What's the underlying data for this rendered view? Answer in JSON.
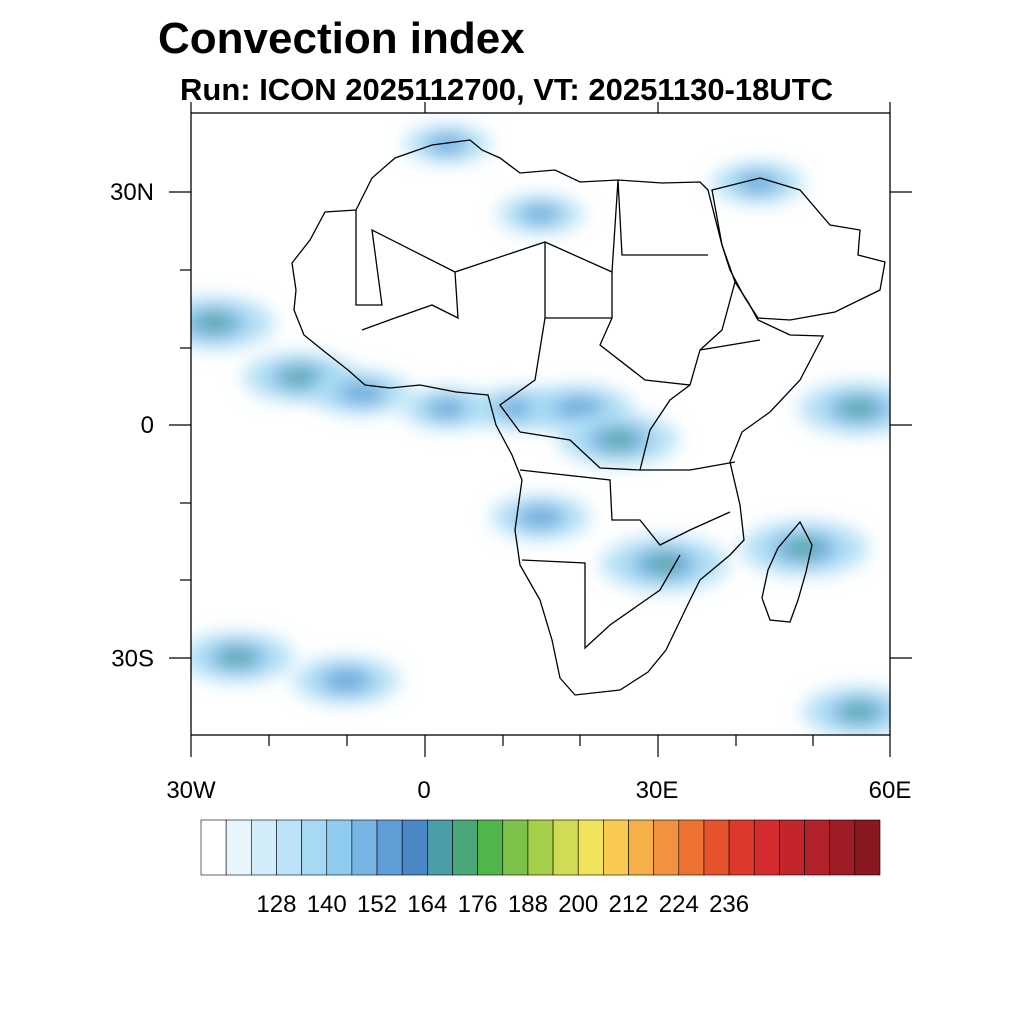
{
  "title": "Convection index",
  "subtitle": "Run: ICON 2025112700,  VT: 20251130-18UTC",
  "map": {
    "lon_range": [
      -30,
      60
    ],
    "lat_range": [
      -40,
      40
    ],
    "x_tick_labels": [
      {
        "lon": -30,
        "label": "30W"
      },
      {
        "lon": 0,
        "label": "0"
      },
      {
        "lon": 30,
        "label": "30E"
      },
      {
        "lon": 60,
        "label": "60E"
      }
    ],
    "y_tick_labels": [
      {
        "lat": 30,
        "label": "30N"
      },
      {
        "lat": 0,
        "label": "0"
      },
      {
        "lat": -30,
        "label": "30S"
      }
    ],
    "field_blobs": [
      {
        "lon": -27,
        "lat": 13,
        "level": 0.5
      },
      {
        "lon": -16,
        "lat": 6,
        "level": 0.45
      },
      {
        "lon": -8,
        "lat": 4,
        "level": 0.35
      },
      {
        "lon": 3,
        "lat": 2,
        "level": 0.3
      },
      {
        "lon": 12,
        "lat": 2,
        "level": 0.3
      },
      {
        "lon": 20,
        "lat": 2,
        "level": 0.4
      },
      {
        "lon": 25,
        "lat": -2,
        "level": 0.5
      },
      {
        "lon": 15,
        "lat": -12,
        "level": 0.35
      },
      {
        "lon": 31,
        "lat": -18,
        "level": 0.55
      },
      {
        "lon": 49,
        "lat": -16,
        "level": 0.55
      },
      {
        "lon": 56,
        "lat": 2,
        "level": 0.5
      },
      {
        "lon": -24,
        "lat": -30,
        "level": 0.45
      },
      {
        "lon": -10,
        "lat": -33,
        "level": 0.4
      },
      {
        "lon": 56,
        "lat": -37,
        "level": 0.45
      },
      {
        "lon": 43,
        "lat": 31,
        "level": 0.3
      },
      {
        "lon": 15,
        "lat": 27,
        "level": 0.25
      },
      {
        "lon": 3,
        "lat": 36,
        "level": 0.25
      }
    ]
  },
  "colorbar": {
    "colors": [
      "#ffffff",
      "#e9f5fc",
      "#d2ecf9",
      "#bce3f7",
      "#a6daf4",
      "#8ecbef",
      "#77b6e4",
      "#5d9ed6",
      "#4a87c4",
      "#4a9ca7",
      "#4aa777",
      "#50b64a",
      "#7cc24a",
      "#a6cf4a",
      "#cfdc54",
      "#f0e45c",
      "#f8cb50",
      "#f6b046",
      "#f29240",
      "#ee7232",
      "#e5532c",
      "#dd3a2c",
      "#d42c2e",
      "#c2262c",
      "#b1222b",
      "#9e1d25",
      "#8a1820"
    ],
    "tick_labels": [
      "128",
      "140",
      "152",
      "164",
      "176",
      "188",
      "200",
      "212",
      "224",
      "236"
    ]
  }
}
